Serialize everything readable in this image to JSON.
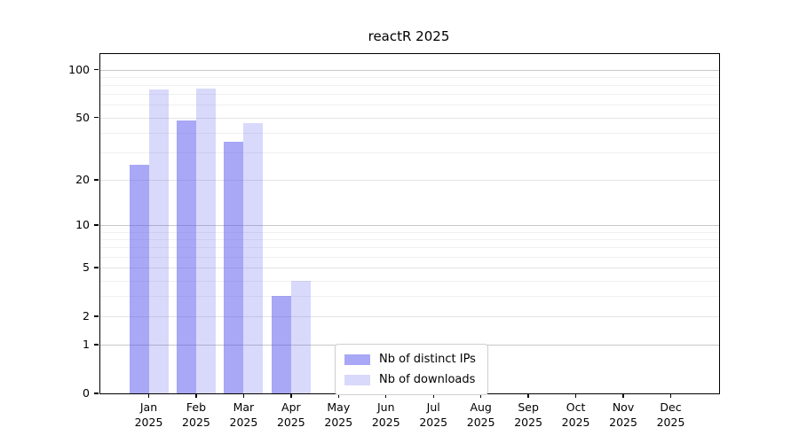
{
  "title": "reactR 2025",
  "legend": {
    "items": [
      {
        "label": "Nb of distinct IPs",
        "color_key": "ips"
      },
      {
        "label": "Nb of downloads",
        "color_key": "downloads"
      }
    ]
  },
  "colors": {
    "ips": "rgba(82,82,237,0.5)",
    "downloads": "rgba(82,82,237,0.22)",
    "grid_decade": "#c8c8c8",
    "grid_labeled": "#e4e4e4",
    "grid_minor": "#f0f0f0",
    "axis": "#000000"
  },
  "chart_data": {
    "type": "bar",
    "title": "reactR 2025",
    "categories": [
      "Jan 2025",
      "Feb 2025",
      "Mar 2025",
      "Apr 2025",
      "May 2025",
      "Jun 2025",
      "Jul 2025",
      "Aug 2025",
      "Sep 2025",
      "Oct 2025",
      "Nov 2025",
      "Dec 2025"
    ],
    "series": [
      {
        "name": "Nb of distinct IPs",
        "key": "ips",
        "values": [
          25,
          48,
          35,
          3,
          0,
          0,
          0,
          0,
          0,
          0,
          0,
          0
        ]
      },
      {
        "name": "Nb of downloads",
        "key": "downloads",
        "values": [
          75,
          76,
          46,
          4,
          0,
          0,
          0,
          0,
          0,
          0,
          0,
          0
        ]
      }
    ],
    "xlabel": "",
    "ylabel": "",
    "yscale": "log1p",
    "ylim": [
      0,
      125
    ],
    "yticks": [
      0,
      1,
      2,
      5,
      10,
      20,
      50,
      100
    ],
    "minor_gridlines": [
      3,
      4,
      6,
      7,
      8,
      9,
      30,
      40,
      60,
      70,
      80,
      90
    ],
    "grid": true,
    "legend_position": "lower center-left inside plot"
  }
}
